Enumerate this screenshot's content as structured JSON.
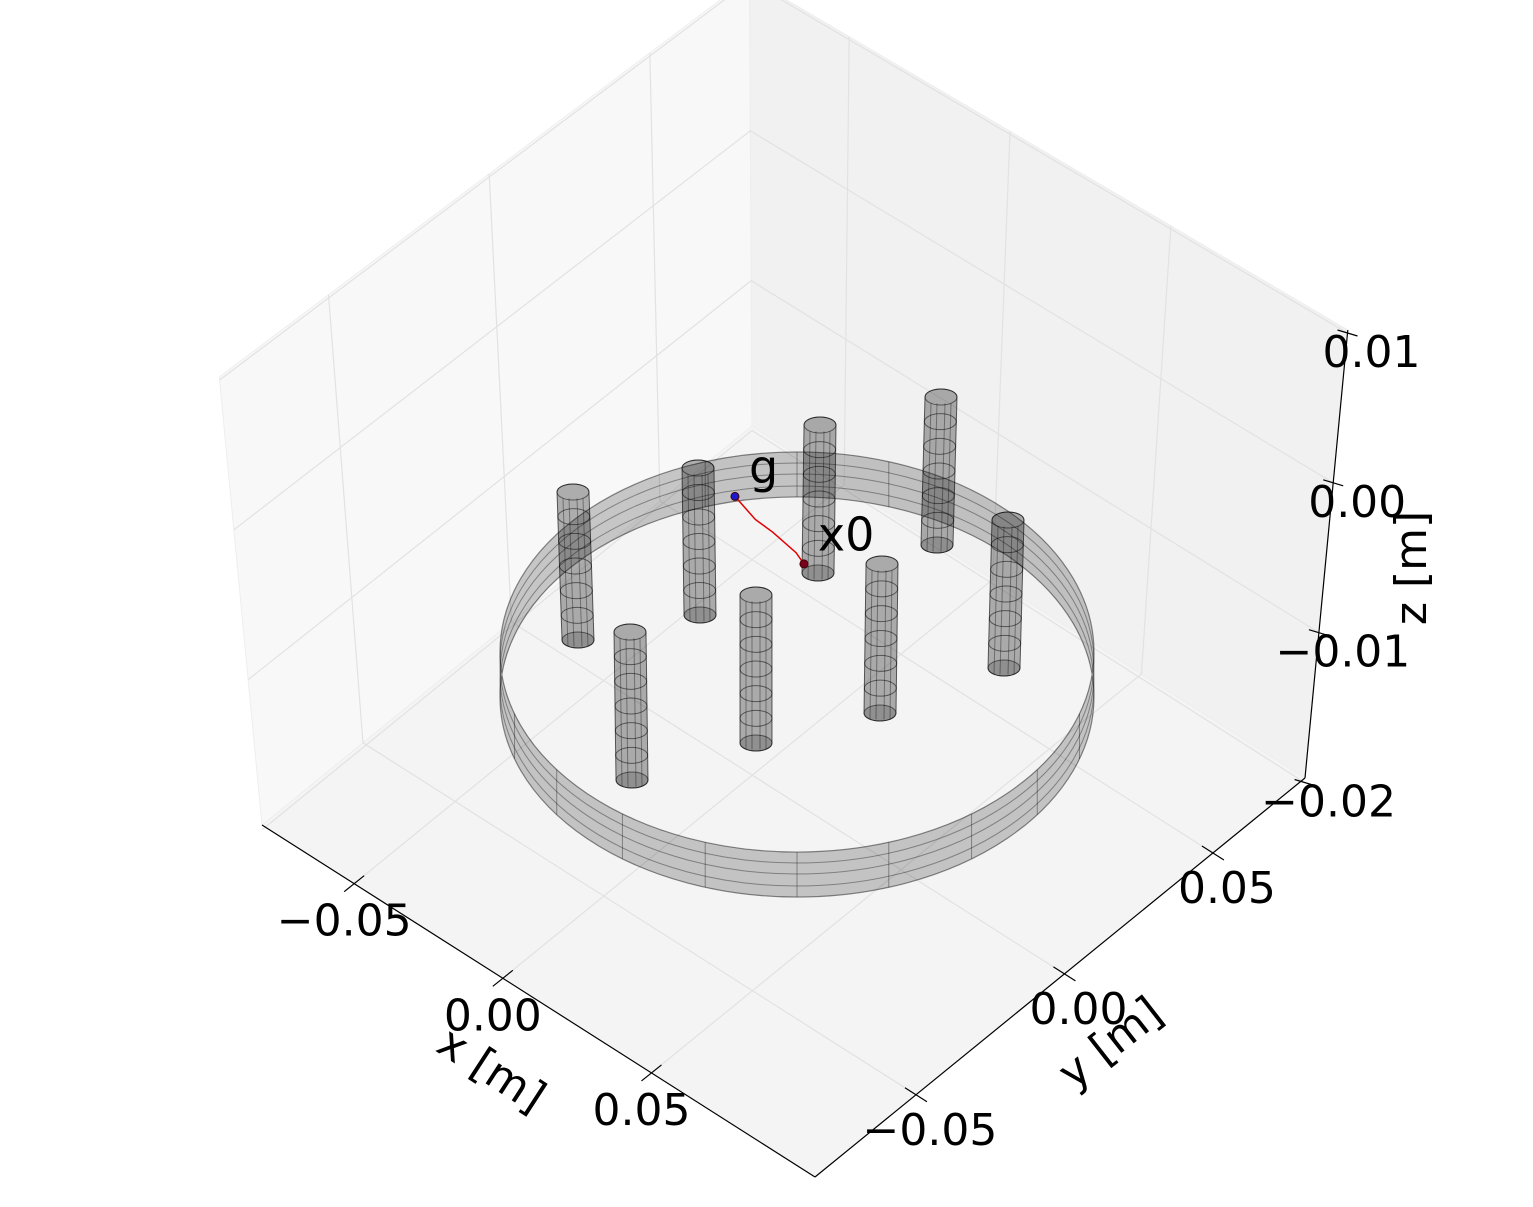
{
  "chart_data": {
    "type": "line3d",
    "xlabel": "x [m]",
    "ylabel": "y [m]",
    "zlabel": "z [m]",
    "xlim": [
      -0.081,
      0.105
    ],
    "ylim": [
      -0.084,
      0.081
    ],
    "zlim": [
      -0.0197,
      0.0102
    ],
    "xticks": [
      {
        "value": -0.05,
        "label": "−0.05"
      },
      {
        "value": 0,
        "label": "0.00"
      },
      0.05
    ],
    "yticks": [
      {
        "value": -0.05,
        "label": "−0.05"
      },
      {
        "value": 0,
        "label": "0.00"
      },
      0.05
    ],
    "zticks": [
      {
        "value": -0.02,
        "label": "−0.02"
      },
      {
        "value": -0.01,
        "label": "−0.01"
      },
      {
        "value": 0,
        "label": "0.00"
      },
      0.01
    ],
    "grid": true,
    "series": [
      {
        "color": "#e00000",
        "x": [
          0.029,
          0.025,
          0.016,
          0.01,
          0.001
        ],
        "y": [
          -0.012,
          -0.0105,
          -0.009,
          -0.0085,
          -0.006
        ],
        "z": [
          0,
          0,
          0,
          0,
          0
        ]
      }
    ],
    "annotations": [
      {
        "text": "x0",
        "x": 0.029,
        "y": -0.012,
        "z": 0,
        "color": "#7a0020"
      },
      {
        "text": "g",
        "x": 0.001,
        "y": -0.006,
        "z": 0,
        "color": "#1a1acc"
      }
    ]
  }
}
